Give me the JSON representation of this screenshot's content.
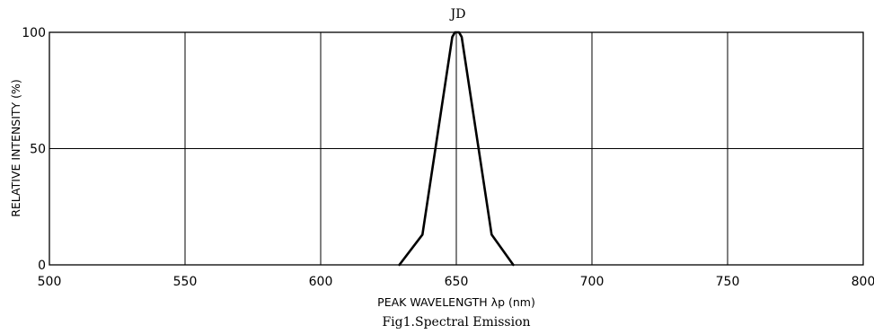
{
  "chart_data": {
    "type": "line",
    "title": "JD",
    "caption": "Fig1.Spectral Emission",
    "xlabel": "PEAK WAVELENGTH λp (nm)",
    "ylabel": "RELATIVE INTENSITY (%)",
    "xlim": [
      500,
      800
    ],
    "ylim": [
      0,
      100
    ],
    "xticks": [
      500,
      550,
      600,
      650,
      700,
      750,
      800
    ],
    "yticks": [
      0,
      50,
      100
    ],
    "grid": true,
    "line_color": "#000000",
    "series": [
      {
        "x": [
          629,
          637.5,
          648.5,
          649.5,
          651,
          652,
          663,
          671
        ],
        "y": [
          0,
          13,
          98,
          100,
          100,
          98,
          13,
          0
        ]
      }
    ]
  }
}
